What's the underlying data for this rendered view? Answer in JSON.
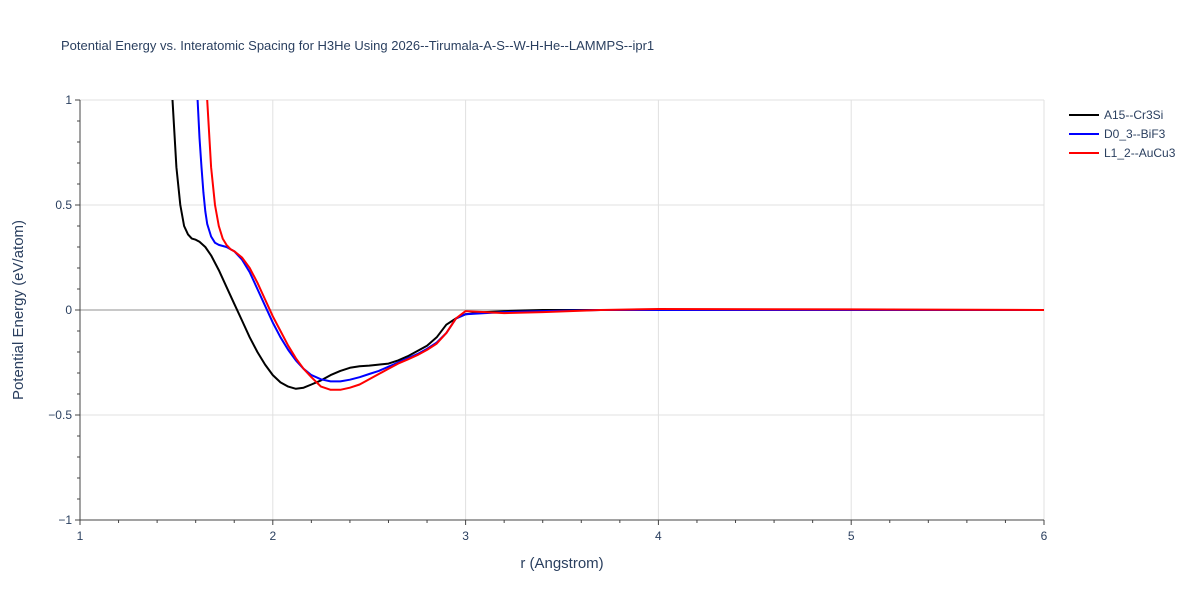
{
  "chart_data": {
    "type": "line",
    "title": "Potential Energy vs. Interatomic Spacing for H3He Using 2026--Tirumala-A-S--W-H-He--LAMMPS--ipr1",
    "xlabel": "r (Angstrom)",
    "ylabel": "Potential Energy (eV/atom)",
    "xlim": [
      1,
      6
    ],
    "ylim": [
      -1,
      1
    ],
    "xticks": [
      1,
      2,
      3,
      4,
      5,
      6
    ],
    "xtick_labels": [
      "1",
      "2",
      "3",
      "4",
      "5",
      "6"
    ],
    "yticks": [
      -1,
      -0.5,
      0,
      0.5,
      1
    ],
    "ytick_labels": [
      "−1",
      "−0.5",
      "0",
      "0.5",
      "1"
    ],
    "grid": true,
    "legend_position": "top-right",
    "series": [
      {
        "name": "A15--Cr3Si",
        "color": "#000000",
        "x": [
          1.48,
          1.5,
          1.52,
          1.54,
          1.56,
          1.58,
          1.6,
          1.62,
          1.65,
          1.68,
          1.72,
          1.76,
          1.8,
          1.84,
          1.88,
          1.92,
          1.96,
          2.0,
          2.04,
          2.08,
          2.12,
          2.16,
          2.2,
          2.25,
          2.3,
          2.35,
          2.4,
          2.45,
          2.5,
          2.55,
          2.6,
          2.65,
          2.7,
          2.75,
          2.8,
          2.85,
          2.9,
          2.95,
          3.0,
          3.1,
          3.2,
          3.4,
          3.7,
          4.0,
          5.0,
          6.0
        ],
        "y": [
          1.0,
          0.68,
          0.5,
          0.4,
          0.36,
          0.34,
          0.335,
          0.325,
          0.3,
          0.26,
          0.19,
          0.11,
          0.03,
          -0.05,
          -0.13,
          -0.2,
          -0.26,
          -0.31,
          -0.345,
          -0.365,
          -0.375,
          -0.37,
          -0.355,
          -0.335,
          -0.31,
          -0.29,
          -0.275,
          -0.268,
          -0.265,
          -0.26,
          -0.255,
          -0.24,
          -0.22,
          -0.195,
          -0.17,
          -0.13,
          -0.07,
          -0.04,
          -0.02,
          -0.01,
          -0.005,
          0.0,
          0.0,
          0.0,
          0.0,
          0.0
        ]
      },
      {
        "name": "D0_3--BiF3",
        "color": "#0000ff",
        "x": [
          1.61,
          1.62,
          1.63,
          1.64,
          1.65,
          1.66,
          1.68,
          1.7,
          1.72,
          1.76,
          1.8,
          1.84,
          1.88,
          1.92,
          1.96,
          2.0,
          2.04,
          2.08,
          2.12,
          2.16,
          2.2,
          2.25,
          2.3,
          2.35,
          2.4,
          2.45,
          2.5,
          2.55,
          2.6,
          2.65,
          2.7,
          2.75,
          2.8,
          2.85,
          2.9,
          2.95,
          3.0,
          3.1,
          3.2,
          3.4,
          3.7,
          4.0,
          5.0,
          6.0
        ],
        "y": [
          1.0,
          0.82,
          0.68,
          0.56,
          0.47,
          0.41,
          0.35,
          0.32,
          0.31,
          0.3,
          0.28,
          0.24,
          0.18,
          0.1,
          0.02,
          -0.06,
          -0.13,
          -0.19,
          -0.24,
          -0.28,
          -0.31,
          -0.33,
          -0.34,
          -0.34,
          -0.332,
          -0.32,
          -0.305,
          -0.29,
          -0.27,
          -0.25,
          -0.23,
          -0.21,
          -0.185,
          -0.155,
          -0.11,
          -0.04,
          -0.02,
          -0.015,
          -0.01,
          -0.005,
          0.0,
          0.0,
          0.0,
          0.0
        ]
      },
      {
        "name": "L1_2--AuCu3",
        "color": "#ff0000",
        "x": [
          1.66,
          1.68,
          1.7,
          1.72,
          1.74,
          1.76,
          1.78,
          1.8,
          1.84,
          1.88,
          1.92,
          1.96,
          2.0,
          2.04,
          2.08,
          2.12,
          2.16,
          2.2,
          2.25,
          2.3,
          2.35,
          2.4,
          2.45,
          2.5,
          2.55,
          2.6,
          2.65,
          2.7,
          2.75,
          2.8,
          2.85,
          2.9,
          2.95,
          3.0,
          3.1,
          3.2,
          3.4,
          3.7,
          4.0,
          5.0,
          6.0
        ],
        "y": [
          1.0,
          0.68,
          0.5,
          0.4,
          0.34,
          0.31,
          0.29,
          0.28,
          0.25,
          0.2,
          0.13,
          0.05,
          -0.03,
          -0.1,
          -0.17,
          -0.23,
          -0.28,
          -0.32,
          -0.365,
          -0.38,
          -0.38,
          -0.37,
          -0.355,
          -0.33,
          -0.305,
          -0.28,
          -0.255,
          -0.235,
          -0.215,
          -0.19,
          -0.16,
          -0.11,
          -0.04,
          -0.005,
          -0.01,
          -0.015,
          -0.01,
          0.0,
          0.005,
          0.003,
          0.0
        ]
      }
    ]
  }
}
